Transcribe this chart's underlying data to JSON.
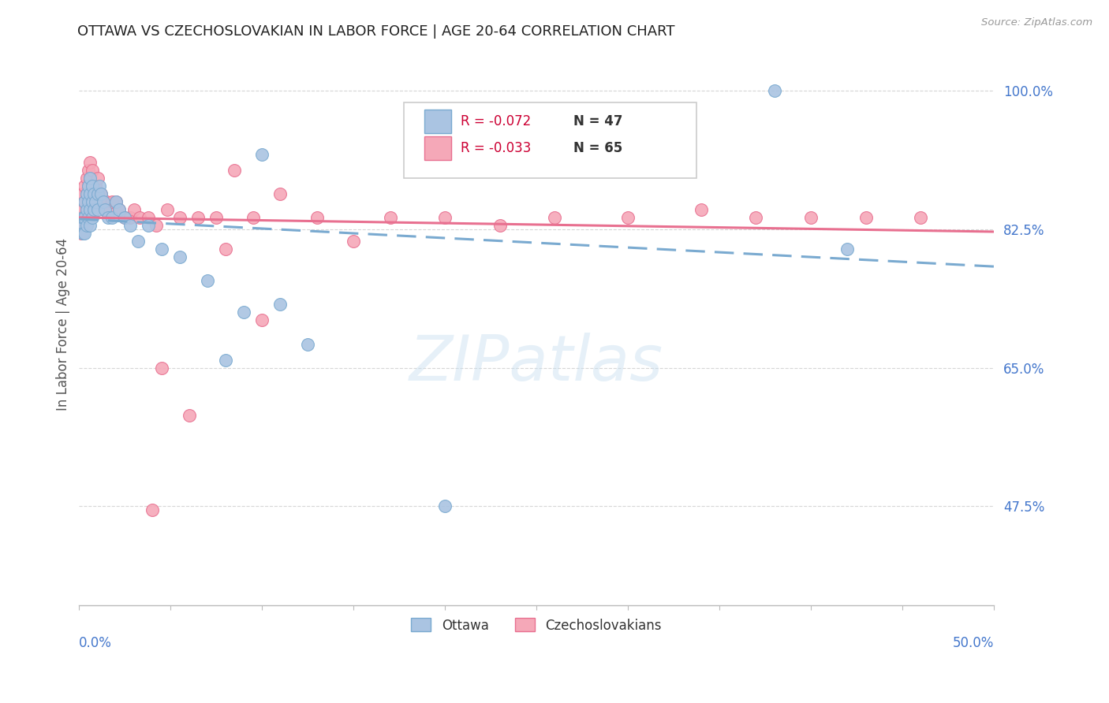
{
  "title": "OTTAWA VS CZECHOSLOVAKIAN IN LABOR FORCE | AGE 20-64 CORRELATION CHART",
  "source": "Source: ZipAtlas.com",
  "ylabel": "In Labor Force | Age 20-64",
  "xlim": [
    0.0,
    0.5
  ],
  "ylim": [
    0.35,
    1.06
  ],
  "ottawa_R": -0.072,
  "ottawa_N": 47,
  "czech_R": -0.033,
  "czech_N": 65,
  "ottawa_color": "#aac4e2",
  "czech_color": "#f5a8b8",
  "ottawa_edge_color": "#7aaad0",
  "czech_edge_color": "#e87090",
  "ottawa_trend_color": "#7aaad0",
  "czech_trend_color": "#e87090",
  "background_color": "#ffffff",
  "grid_color": "#cccccc",
  "title_color": "#222222",
  "axis_label_color": "#4477cc",
  "right_axis_color": "#4477cc",
  "ytick_values": [
    0.475,
    0.65,
    0.825,
    1.0
  ],
  "ytick_labels": [
    "47.5%",
    "65.0%",
    "82.5%",
    "100.0%"
  ],
  "ottawa_points_x": [
    0.001,
    0.002,
    0.002,
    0.003,
    0.003,
    0.003,
    0.004,
    0.004,
    0.004,
    0.005,
    0.005,
    0.005,
    0.006,
    0.006,
    0.006,
    0.006,
    0.007,
    0.007,
    0.007,
    0.008,
    0.008,
    0.009,
    0.01,
    0.01,
    0.011,
    0.012,
    0.013,
    0.014,
    0.016,
    0.018,
    0.02,
    0.022,
    0.025,
    0.028,
    0.032,
    0.038,
    0.045,
    0.055,
    0.07,
    0.08,
    0.09,
    0.1,
    0.11,
    0.125,
    0.2,
    0.38,
    0.42
  ],
  "ottawa_points_y": [
    0.83,
    0.84,
    0.82,
    0.86,
    0.84,
    0.82,
    0.87,
    0.85,
    0.83,
    0.88,
    0.86,
    0.84,
    0.89,
    0.87,
    0.85,
    0.83,
    0.88,
    0.86,
    0.84,
    0.87,
    0.85,
    0.86,
    0.87,
    0.85,
    0.88,
    0.87,
    0.86,
    0.85,
    0.84,
    0.84,
    0.86,
    0.85,
    0.84,
    0.83,
    0.81,
    0.83,
    0.8,
    0.79,
    0.76,
    0.66,
    0.72,
    0.92,
    0.73,
    0.68,
    0.475,
    1.0,
    0.8
  ],
  "czech_points_x": [
    0.001,
    0.001,
    0.002,
    0.002,
    0.002,
    0.003,
    0.003,
    0.003,
    0.004,
    0.004,
    0.004,
    0.005,
    0.005,
    0.005,
    0.006,
    0.006,
    0.006,
    0.007,
    0.007,
    0.007,
    0.008,
    0.008,
    0.009,
    0.009,
    0.01,
    0.01,
    0.011,
    0.012,
    0.013,
    0.014,
    0.015,
    0.016,
    0.018,
    0.02,
    0.022,
    0.025,
    0.028,
    0.03,
    0.033,
    0.038,
    0.042,
    0.048,
    0.055,
    0.065,
    0.075,
    0.085,
    0.095,
    0.11,
    0.13,
    0.15,
    0.17,
    0.2,
    0.23,
    0.26,
    0.3,
    0.34,
    0.37,
    0.4,
    0.43,
    0.46,
    0.1,
    0.045,
    0.06,
    0.08,
    0.04
  ],
  "czech_points_y": [
    0.84,
    0.82,
    0.87,
    0.85,
    0.83,
    0.88,
    0.86,
    0.84,
    0.89,
    0.87,
    0.85,
    0.9,
    0.88,
    0.86,
    0.91,
    0.89,
    0.87,
    0.9,
    0.88,
    0.86,
    0.87,
    0.85,
    0.88,
    0.86,
    0.89,
    0.87,
    0.86,
    0.87,
    0.86,
    0.85,
    0.86,
    0.85,
    0.86,
    0.86,
    0.85,
    0.84,
    0.84,
    0.85,
    0.84,
    0.84,
    0.83,
    0.85,
    0.84,
    0.84,
    0.84,
    0.9,
    0.84,
    0.87,
    0.84,
    0.81,
    0.84,
    0.84,
    0.83,
    0.84,
    0.84,
    0.85,
    0.84,
    0.84,
    0.84,
    0.84,
    0.71,
    0.65,
    0.59,
    0.8,
    0.47
  ],
  "legend_R_ottawa": "R = -0.072",
  "legend_N_ottawa": "N = 47",
  "legend_R_czech": "R = -0.033",
  "legend_N_czech": "N = 65"
}
